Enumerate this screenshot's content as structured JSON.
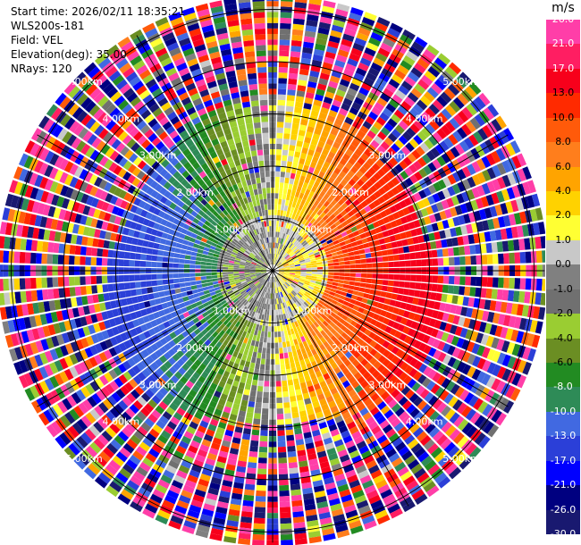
{
  "header": {
    "start_time": "Start time: 2026/02/11 18:35:21",
    "instrument": "WLS200s-181",
    "field": "Field: VEL",
    "elevation": "Elevation(deg): 35.00",
    "nrays": "NRays: 120"
  },
  "colorbar": {
    "unit": "m/s",
    "labels": [
      "26.0",
      "21.0",
      "17.0",
      "13.0",
      "10.0",
      "8.0",
      "6.0",
      "4.0",
      "2.0",
      "1.0",
      "0.0",
      "-1.0",
      "-2.0",
      "-4.0",
      "-6.0",
      "-8.0",
      "-10.0",
      "-13.0",
      "-17.0",
      "-21.0",
      "-26.0",
      "-30.0"
    ],
    "colors": [
      "#ff3ea8",
      "#ff1e62",
      "#f7001b",
      "#ff2a00",
      "#ff5a0a",
      "#ff7e1c",
      "#ffa400",
      "#ffd200",
      "#ffff33",
      "#c8c8c8",
      "#808080",
      "#707070",
      "#9acd32",
      "#6b8e23",
      "#228b22",
      "#2e8b57",
      "#4169e1",
      "#2b3fd8",
      "#0000ff",
      "#000080",
      "#191970"
    ]
  },
  "chart_data": {
    "type": "heatmap",
    "projection": "polar PPI",
    "field": "VEL",
    "unit": "m/s",
    "elevation_deg": 35.0,
    "nrays": 120,
    "range_ring_labels": [
      "1.00km",
      "2.00km",
      "3.00km",
      "4.00km",
      "5.00km"
    ],
    "range_rings_km": [
      1,
      2,
      3,
      4,
      5
    ],
    "max_range_km": 5.2,
    "color_levels_m_s": [
      26.0,
      21.0,
      17.0,
      13.0,
      10.0,
      8.0,
      6.0,
      4.0,
      2.0,
      1.0,
      0.0,
      -1.0,
      -2.0,
      -4.0,
      -6.0,
      -8.0,
      -10.0,
      -13.0,
      -17.0,
      -21.0,
      -26.0,
      -30.0
    ],
    "velocity_pattern": "positive (red/orange) toward east, negative (green/blue) toward west, noisy beyond ~3.2 km"
  }
}
